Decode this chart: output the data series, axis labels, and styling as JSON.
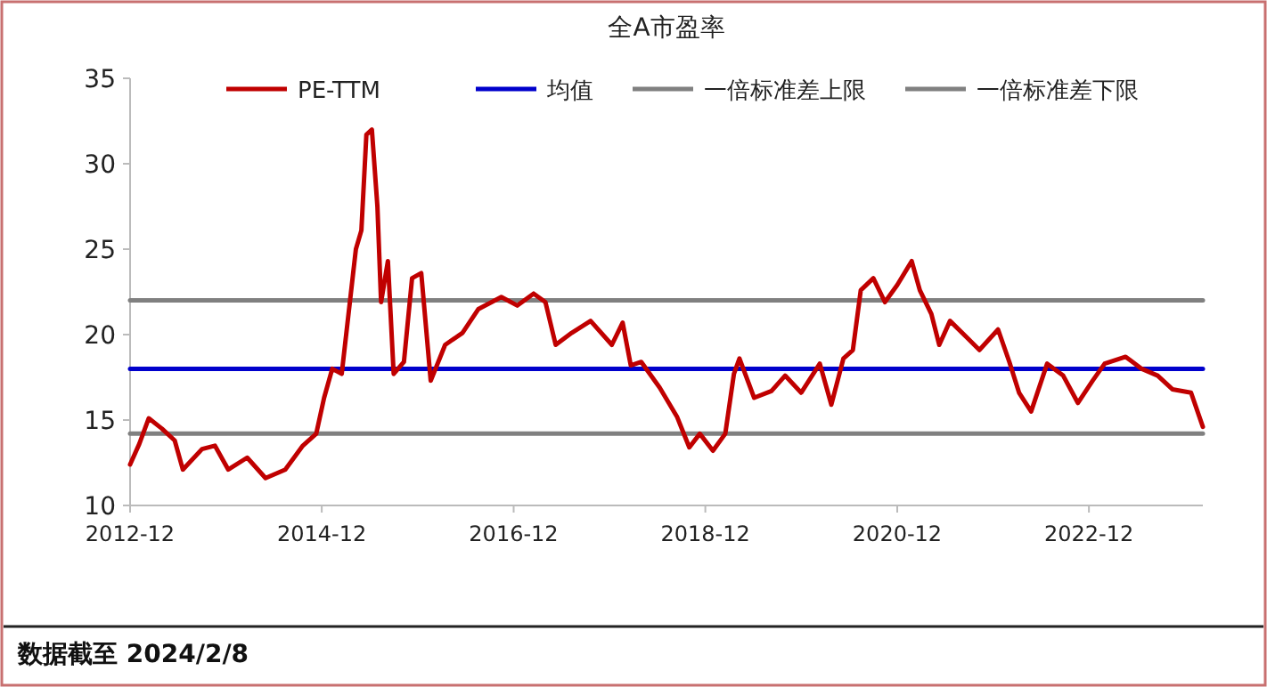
{
  "chart_data": {
    "type": "line",
    "title": "全A市盈率",
    "annotations": [
      "数据截至 2024/2/8"
    ],
    "xlim": [
      "2012-12",
      "2024-02-08"
    ],
    "xticks": [
      "2012-12",
      "2014-12",
      "2016-12",
      "2018-12",
      "2020-12",
      "2022-12"
    ],
    "ylim": [
      10,
      35
    ],
    "yticks": [
      10,
      15,
      20,
      25,
      30,
      35
    ],
    "grid": false,
    "legend": "top",
    "series": [
      {
        "name": "PE-TTM",
        "color": "#c00000",
        "x": [
          "2012-12-01",
          "2013-01-05",
          "2013-02-10",
          "2013-04-01",
          "2013-05-20",
          "2013-06-20",
          "2013-09-01",
          "2013-10-20",
          "2013-12-10",
          "2014-02-20",
          "2014-05-01",
          "2014-07-15",
          "2014-09-20",
          "2014-11-10",
          "2014-12-10",
          "2015-01-10",
          "2015-02-15",
          "2015-04-10",
          "2015-05-01",
          "2015-05-20",
          "2015-06-10",
          "2015-07-01",
          "2015-07-15",
          "2015-08-10",
          "2015-09-01",
          "2015-10-10",
          "2015-11-10",
          "2015-12-15",
          "2016-01-20",
          "2016-03-15",
          "2016-05-20",
          "2016-07-20",
          "2016-10-15",
          "2016-12-15",
          "2017-02-15",
          "2017-04-01",
          "2017-05-10",
          "2017-07-10",
          "2017-09-20",
          "2017-12-10",
          "2018-01-20",
          "2018-02-20",
          "2018-04-01",
          "2018-06-10",
          "2018-08-15",
          "2018-10-01",
          "2018-11-10",
          "2018-12-30",
          "2019-02-15",
          "2019-03-20",
          "2019-04-10",
          "2019-06-05",
          "2019-08-10",
          "2019-10-01",
          "2019-12-01",
          "2020-02-10",
          "2020-03-25",
          "2020-05-10",
          "2020-06-15",
          "2020-07-15",
          "2020-09-01",
          "2020-10-15",
          "2020-12-01",
          "2021-01-25",
          "2021-02-25",
          "2021-04-10",
          "2021-05-10",
          "2021-06-20",
          "2021-08-25",
          "2021-10-10",
          "2021-12-20",
          "2022-02-01",
          "2022-03-10",
          "2022-04-25",
          "2022-06-25",
          "2022-08-25",
          "2022-10-20",
          "2022-12-15",
          "2023-01-30",
          "2023-04-20",
          "2023-06-20",
          "2023-08-20",
          "2023-10-15",
          "2023-12-25",
          "2024-02-08"
        ],
        "values": [
          12.4,
          13.6,
          15.1,
          14.5,
          13.8,
          12.1,
          13.3,
          13.5,
          12.1,
          12.8,
          11.6,
          12.1,
          13.5,
          14.2,
          16.3,
          18.0,
          17.7,
          25.0,
          26.1,
          31.7,
          32.0,
          27.5,
          21.9,
          24.3,
          17.7,
          18.4,
          23.3,
          23.6,
          17.3,
          19.4,
          20.1,
          21.5,
          22.2,
          21.7,
          22.4,
          21.9,
          19.4,
          20.1,
          20.8,
          19.4,
          20.7,
          18.2,
          18.4,
          16.9,
          15.2,
          13.4,
          14.2,
          13.2,
          14.2,
          17.7,
          18.6,
          16.3,
          16.7,
          17.6,
          16.6,
          18.3,
          15.9,
          18.6,
          19.1,
          22.6,
          23.3,
          21.9,
          22.9,
          24.3,
          22.6,
          21.2,
          19.4,
          20.8,
          19.8,
          19.1,
          20.3,
          18.4,
          16.6,
          15.5,
          18.3,
          17.6,
          16.0,
          17.3,
          18.3,
          18.7,
          18.0,
          17.6,
          16.8,
          16.6,
          14.6
        ]
      },
      {
        "name": "均值",
        "color": "#0000cc",
        "x": [
          "2012-12",
          "2024-02-08"
        ],
        "values": [
          18,
          18
        ]
      },
      {
        "name": "一倍标准差上限",
        "color": "#808080",
        "x": [
          "2012-12",
          "2024-02-08"
        ],
        "values": [
          22,
          22
        ]
      },
      {
        "name": "一倍标准差下限",
        "color": "#808080",
        "x": [
          "2012-12",
          "2024-02-08"
        ],
        "values": [
          14.2,
          14.2
        ]
      }
    ]
  }
}
